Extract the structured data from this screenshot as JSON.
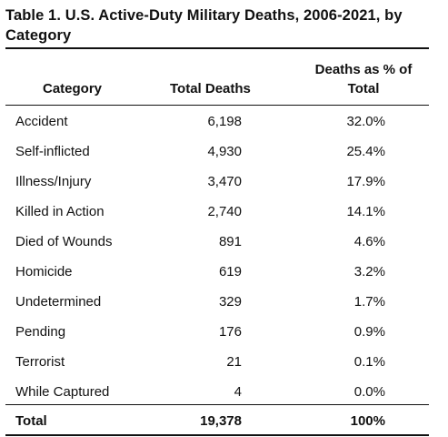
{
  "table": {
    "title": "Table 1. U.S. Active-Duty Military Deaths, 2006-2021, by Category",
    "headers": {
      "category": "Category",
      "total": "Total Deaths",
      "pct_line1": "Deaths as % of",
      "pct_line2": "Total"
    },
    "rows": [
      {
        "category": "Accident",
        "total": "6,198",
        "pct": "32.0%"
      },
      {
        "category": "Self-inflicted",
        "total": "4,930",
        "pct": "25.4%"
      },
      {
        "category": "Illness/Injury",
        "total": "3,470",
        "pct": "17.9%"
      },
      {
        "category": "Killed in Action",
        "total": "2,740",
        "pct": "14.1%"
      },
      {
        "category": "Died of Wounds",
        "total": "891",
        "pct": "4.6%"
      },
      {
        "category": "Homicide",
        "total": "619",
        "pct": "3.2%"
      },
      {
        "category": "Undetermined",
        "total": "329",
        "pct": "1.7%"
      },
      {
        "category": "Pending",
        "total": "176",
        "pct": "0.9%"
      },
      {
        "category": "Terrorist",
        "total": "21",
        "pct": "0.1%"
      },
      {
        "category": "While Captured",
        "total": "4",
        "pct": "0.0%"
      }
    ],
    "total_row": {
      "category": "Total",
      "total": "19,378",
      "pct": "100%"
    }
  }
}
